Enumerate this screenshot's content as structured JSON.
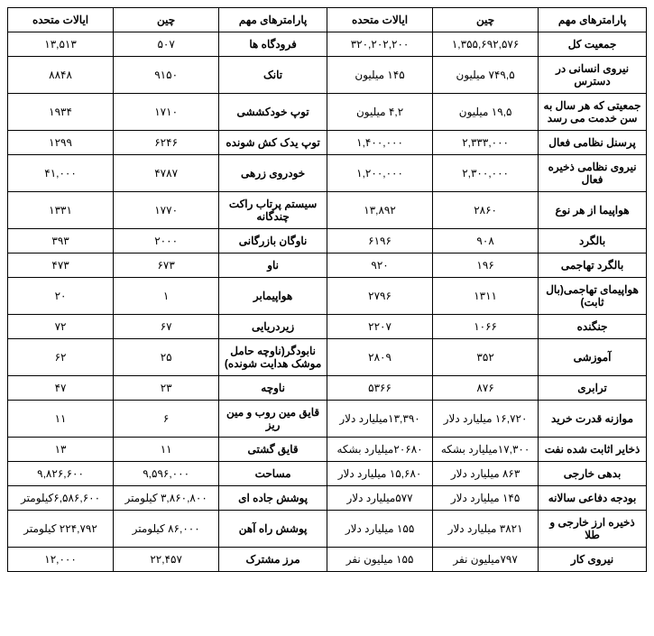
{
  "headers": {
    "param": "پارامترهای مهم",
    "china": "چین",
    "usa": "ایالات متحده"
  },
  "rows": [
    {
      "p1": "جمعیت کل",
      "c1": "۱,۳۵۵,۶۹۲,۵۷۶",
      "u1": "۳۲۰,۲۰۲,۲۰۰",
      "p2": "فرودگاه ها",
      "c2": "۵۰۷",
      "u2": "۱۳,۵۱۳"
    },
    {
      "p1": "نیروی انسانی در دسترس",
      "c1": "۷۴۹,۵ میلیون",
      "u1": "۱۴۵ میلیون",
      "p2": "تانک",
      "c2": "۹۱۵۰",
      "u2": "۸۸۴۸"
    },
    {
      "p1": "جمعیتی که هر سال به سن خدمت می رسد",
      "c1": "۱۹,۵ میلیون",
      "u1": "۴,۲ میلیون",
      "p2": "توپ خودکششی",
      "c2": "۱۷۱۰",
      "u2": "۱۹۳۴"
    },
    {
      "p1": "پرسنل نظامی فعال",
      "c1": "۲,۳۳۳,۰۰۰",
      "u1": "۱,۴۰۰,۰۰۰",
      "p2": "توپ یدک کش شونده",
      "c2": "۶۲۴۶",
      "u2": "۱۲۹۹"
    },
    {
      "p1": "نیروی نظامی ذخیره فعال",
      "c1": "۲,۳۰۰,۰۰۰",
      "u1": "۱,۲۰۰,۰۰۰",
      "p2": "خودروی زرهی",
      "c2": "۴۷۸۷",
      "u2": "۴۱,۰۰۰"
    },
    {
      "p1": "هواپیما از هر نوع",
      "c1": "۲۸۶۰",
      "u1": "۱۳,۸۹۲",
      "p2": "سیستم پرتاب راکت چندگانه",
      "c2": "۱۷۷۰",
      "u2": "۱۳۳۱"
    },
    {
      "p1": "بالگرد",
      "c1": "۹۰۸",
      "u1": "۶۱۹۶",
      "p2": "ناوگان بازرگانی",
      "c2": "۲۰۰۰",
      "u2": "۳۹۳"
    },
    {
      "p1": "بالگرد تهاجمی",
      "c1": "۱۹۶",
      "u1": "۹۲۰",
      "p2": "ناو",
      "c2": "۶۷۳",
      "u2": "۴۷۳"
    },
    {
      "p1": "هواپیمای تهاجمی(بال ثابت)",
      "c1": "۱۳۱۱",
      "u1": "۲۷۹۶",
      "p2": "هواپیمابر",
      "c2": "۱",
      "u2": "۲۰"
    },
    {
      "p1": "جنگنده",
      "c1": "۱۰۶۶",
      "u1": "۲۲۰۷",
      "p2": "زیردریایی",
      "c2": "۶۷",
      "u2": "۷۲"
    },
    {
      "p1": "آموزشی",
      "c1": "۳۵۲",
      "u1": "۲۸۰۹",
      "p2": "نابودگر(ناوچه حامل موشک هدایت شونده)",
      "c2": "۲۵",
      "u2": "۶۲"
    },
    {
      "p1": "ترابری",
      "c1": "۸۷۶",
      "u1": "۵۳۶۶",
      "p2": "ناوچه",
      "c2": "۲۳",
      "u2": "۴۷"
    },
    {
      "p1": "موازنه قدرت خرید",
      "c1": "۱۶,۷۲۰ میلیارد دلار",
      "u1": "۱۳,۳۹۰میلیارد دلار",
      "p2": "قایق مین روب و مین ریز",
      "c2": "۶",
      "u2": "۱۱"
    },
    {
      "p1": "ذخایر اثابت شده نفت",
      "c1": "۱۷,۳۰۰میلیارد بشکه",
      "u1": "۲۰۶۸۰میلیارد بشکه",
      "p2": "قایق گشتی",
      "c2": "۱۱",
      "u2": "۱۳"
    },
    {
      "p1": "بدهی خارجی",
      "c1": "۸۶۳ میلیارد دلار",
      "u1": "۱۵,۶۸۰ میلیارد دلار",
      "p2": "مساحت",
      "c2": "۹,۵۹۶,۰۰۰",
      "u2": "۹,۸۲۶,۶۰۰"
    },
    {
      "p1": "بودجه دفاعی سالانه",
      "c1": "۱۴۵ میلیارد دلار",
      "u1": "۵۷۷میلیارد دلار",
      "p2": "پوشش جاده ای",
      "c2": "۳,۸۶۰,۸۰۰ کیلومتر",
      "u2": "۶,۵۸۶,۶۰۰کیلومتر"
    },
    {
      "p1": "ذخیره ارز خارجی و طلا",
      "c1": "۳۸۲۱ میلیارد دلار",
      "u1": "۱۵۵ میلیارد دلار",
      "p2": "پوشش راه آهن",
      "c2": "۸۶,۰۰۰ کیلومتر",
      "u2": "۲۲۴,۷۹۲ کیلومتر"
    },
    {
      "p1": "نیروی کار",
      "c1": "۷۹۷میلیون نفر",
      "u1": "۱۵۵ میلیون نفر",
      "p2": "مرز مشترک",
      "c2": "۲۲,۴۵۷",
      "u2": "۱۲,۰۰۰"
    }
  ]
}
